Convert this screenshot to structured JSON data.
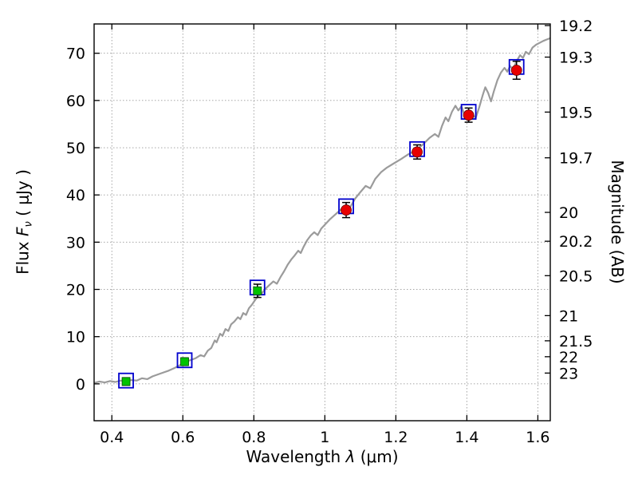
{
  "figure": {
    "background": "#ffffff"
  },
  "chart_data": {
    "type": "line+scatter",
    "title": "",
    "xlabel": {
      "pre": "Wavelength ",
      "math": "λ",
      "post": " (μm)"
    },
    "ylabel_left": {
      "pre": "Flux ",
      "math": "F",
      "sub": "ν",
      "post": " ( μJy )"
    },
    "ylabel_right": "Magnitude (AB)",
    "xlim": [
      0.35,
      1.635
    ],
    "ylim": [
      -7.8,
      76.2
    ],
    "grid": "dotted",
    "x_ticks": [
      {
        "v": 0.4,
        "label": "0.4"
      },
      {
        "v": 0.6,
        "label": "0.6"
      },
      {
        "v": 0.8,
        "label": "0.8"
      },
      {
        "v": 1.0,
        "label": "1"
      },
      {
        "v": 1.2,
        "label": "1.2"
      },
      {
        "v": 1.4,
        "label": "1.4"
      },
      {
        "v": 1.6,
        "label": "1.6"
      }
    ],
    "y_ticks_left": [
      {
        "v": 0,
        "label": "0"
      },
      {
        "v": 10,
        "label": "10"
      },
      {
        "v": 20,
        "label": "20"
      },
      {
        "v": 30,
        "label": "30"
      },
      {
        "v": 40,
        "label": "40"
      },
      {
        "v": 50,
        "label": "50"
      },
      {
        "v": 60,
        "label": "60"
      },
      {
        "v": 70,
        "label": "70"
      }
    ],
    "y_ticks_right": [
      {
        "flux": 75.86,
        "label": "19.2"
      },
      {
        "flux": 69.18,
        "label": "19.3"
      },
      {
        "flux": 57.54,
        "label": "19.5"
      },
      {
        "flux": 47.86,
        "label": "19.7"
      },
      {
        "flux": 36.31,
        "label": "20"
      },
      {
        "flux": 30.2,
        "label": "20.2"
      },
      {
        "flux": 22.91,
        "label": "20.5"
      },
      {
        "flux": 14.45,
        "label": "21"
      },
      {
        "flux": 9.12,
        "label": "21.5"
      },
      {
        "flux": 5.75,
        "label": "22"
      },
      {
        "flux": 2.29,
        "label": "23"
      }
    ],
    "spectrum": {
      "color": "#9b9b9b",
      "width": 2.2,
      "points": [
        [
          0.35,
          0.2
        ],
        [
          0.365,
          0.5
        ],
        [
          0.38,
          0.3
        ],
        [
          0.395,
          0.6
        ],
        [
          0.41,
          0.4
        ],
        [
          0.425,
          0.7
        ],
        [
          0.44,
          0.5
        ],
        [
          0.455,
          0.8
        ],
        [
          0.47,
          0.7
        ],
        [
          0.485,
          1.2
        ],
        [
          0.5,
          1.0
        ],
        [
          0.515,
          1.6
        ],
        [
          0.53,
          2.0
        ],
        [
          0.545,
          2.4
        ],
        [
          0.56,
          2.8
        ],
        [
          0.575,
          3.3
        ],
        [
          0.59,
          3.9
        ],
        [
          0.605,
          4.5
        ],
        [
          0.62,
          5.0
        ],
        [
          0.635,
          5.4
        ],
        [
          0.65,
          6.1
        ],
        [
          0.66,
          5.8
        ],
        [
          0.67,
          7.0
        ],
        [
          0.68,
          7.6
        ],
        [
          0.69,
          9.2
        ],
        [
          0.695,
          8.8
        ],
        [
          0.705,
          10.6
        ],
        [
          0.712,
          10.2
        ],
        [
          0.72,
          11.6
        ],
        [
          0.728,
          11.2
        ],
        [
          0.736,
          12.6
        ],
        [
          0.745,
          13.2
        ],
        [
          0.755,
          14.1
        ],
        [
          0.762,
          13.7
        ],
        [
          0.77,
          15.0
        ],
        [
          0.778,
          14.6
        ],
        [
          0.786,
          16.0
        ],
        [
          0.795,
          16.8
        ],
        [
          0.805,
          17.9
        ],
        [
          0.815,
          18.8
        ],
        [
          0.825,
          19.4
        ],
        [
          0.835,
          20.3
        ],
        [
          0.845,
          21.0
        ],
        [
          0.855,
          21.7
        ],
        [
          0.865,
          21.2
        ],
        [
          0.875,
          22.6
        ],
        [
          0.885,
          23.8
        ],
        [
          0.895,
          25.2
        ],
        [
          0.905,
          26.3
        ],
        [
          0.915,
          27.2
        ],
        [
          0.925,
          28.2
        ],
        [
          0.932,
          27.7
        ],
        [
          0.94,
          29.0
        ],
        [
          0.95,
          30.4
        ],
        [
          0.96,
          31.4
        ],
        [
          0.97,
          32.1
        ],
        [
          0.98,
          31.5
        ],
        [
          0.99,
          32.9
        ],
        [
          1.0,
          33.7
        ],
        [
          1.015,
          34.9
        ],
        [
          1.03,
          35.9
        ],
        [
          1.045,
          36.9
        ],
        [
          1.06,
          37.9
        ],
        [
          1.072,
          37.5
        ],
        [
          1.085,
          39.2
        ],
        [
          1.1,
          40.6
        ],
        [
          1.115,
          41.9
        ],
        [
          1.128,
          41.4
        ],
        [
          1.142,
          43.4
        ],
        [
          1.158,
          44.8
        ],
        [
          1.175,
          45.8
        ],
        [
          1.195,
          46.7
        ],
        [
          1.215,
          47.6
        ],
        [
          1.235,
          48.6
        ],
        [
          1.255,
          49.4
        ],
        [
          1.275,
          50.6
        ],
        [
          1.295,
          52.1
        ],
        [
          1.31,
          52.9
        ],
        [
          1.32,
          52.3
        ],
        [
          1.33,
          54.6
        ],
        [
          1.34,
          56.4
        ],
        [
          1.348,
          55.6
        ],
        [
          1.358,
          57.6
        ],
        [
          1.368,
          58.9
        ],
        [
          1.376,
          57.9
        ],
        [
          1.385,
          58.8
        ],
        [
          1.395,
          56.6
        ],
        [
          1.405,
          55.6
        ],
        [
          1.415,
          57.1
        ],
        [
          1.425,
          56.3
        ],
        [
          1.435,
          58.6
        ],
        [
          1.445,
          61.2
        ],
        [
          1.452,
          62.8
        ],
        [
          1.46,
          61.6
        ],
        [
          1.468,
          59.8
        ],
        [
          1.476,
          61.9
        ],
        [
          1.486,
          64.3
        ],
        [
          1.496,
          65.9
        ],
        [
          1.506,
          66.9
        ],
        [
          1.514,
          66.1
        ],
        [
          1.522,
          67.3
        ],
        [
          1.53,
          66.6
        ],
        [
          1.54,
          68.3
        ],
        [
          1.55,
          69.6
        ],
        [
          1.558,
          69.0
        ],
        [
          1.566,
          70.3
        ],
        [
          1.575,
          69.8
        ],
        [
          1.585,
          71.2
        ],
        [
          1.595,
          71.8
        ],
        [
          1.605,
          72.2
        ],
        [
          1.615,
          72.6
        ],
        [
          1.625,
          72.9
        ],
        [
          1.635,
          73.2
        ]
      ]
    },
    "model_photometry": {
      "marker": "open-square",
      "color": "#0000cd",
      "size": 18,
      "points": [
        [
          0.44,
          0.7
        ],
        [
          0.605,
          5.0
        ],
        [
          0.81,
          20.4
        ],
        [
          1.06,
          37.6
        ],
        [
          1.26,
          49.7
        ],
        [
          1.405,
          57.6
        ],
        [
          1.54,
          67.1
        ]
      ]
    },
    "observed_green": {
      "marker": "square",
      "color": "#00c300",
      "edge": "#004d00",
      "size": 10,
      "points": [
        [
          0.44,
          0.5,
          0.8
        ],
        [
          0.605,
          4.7,
          0.8
        ],
        [
          0.81,
          19.7,
          1.4
        ]
      ]
    },
    "observed_red": {
      "marker": "circle",
      "color": "#e80000",
      "edge": "#660000",
      "size": 13,
      "points": [
        [
          1.06,
          36.8,
          1.6
        ],
        [
          1.26,
          49.1,
          1.5
        ],
        [
          1.405,
          56.9,
          1.5
        ],
        [
          1.54,
          66.4,
          1.9
        ]
      ]
    }
  }
}
